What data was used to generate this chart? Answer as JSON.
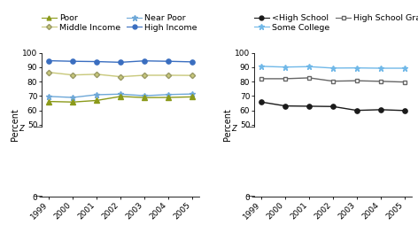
{
  "years": [
    1999,
    2000,
    2001,
    2002,
    2003,
    2004,
    2005
  ],
  "high_income": [
    94.5,
    94.1,
    93.9,
    93.4,
    94.4,
    94.1,
    93.7
  ],
  "middle_income": [
    86.4,
    84.6,
    85.1,
    83.4,
    84.4,
    84.4,
    84.3
  ],
  "near_poor": [
    69.7,
    69.0,
    70.9,
    71.3,
    70.2,
    71.0,
    71.4
  ],
  "poor": [
    66.2,
    65.8,
    66.9,
    69.7,
    68.9,
    69.0,
    69.4
  ],
  "some_college": [
    90.6,
    90.1,
    90.4,
    89.4,
    89.5,
    89.3,
    89.3
  ],
  "hs_grad": [
    82.0,
    82.0,
    82.6,
    80.3,
    80.6,
    80.2,
    79.7
  ],
  "less_hs": [
    65.8,
    63.1,
    62.9,
    62.7,
    60.0,
    60.5,
    59.9
  ],
  "yticks_display": [
    0,
    50,
    60,
    70,
    80,
    90,
    100
  ],
  "tick_fontsize": 6.5,
  "legend_fontsize": 6.8,
  "ylabel_fontsize": 7
}
